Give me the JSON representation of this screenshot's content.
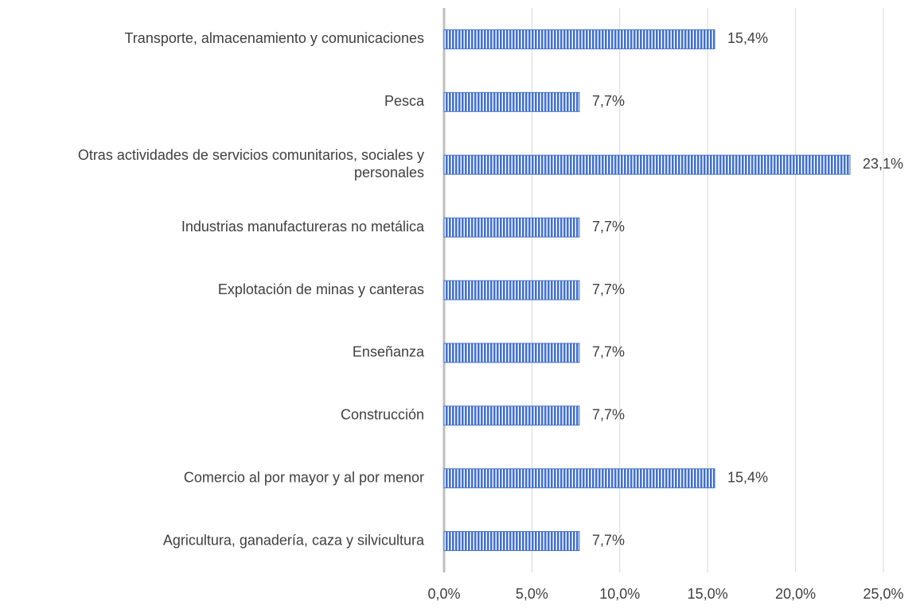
{
  "chart_data": {
    "type": "bar",
    "orientation": "horizontal",
    "categories": [
      "Transporte, almacenamiento y comunicaciones",
      "Pesca",
      "Otras actividades de servicios comunitarios, sociales y\npersonales",
      "Industrias manufactureras no metálica",
      "Explotación de minas y canteras",
      "Enseñanza",
      "Construcción",
      "Comercio al por mayor y al por menor",
      "Agricultura, ganadería, caza y silvicultura"
    ],
    "values": [
      15.4,
      7.7,
      23.1,
      7.7,
      7.7,
      7.7,
      7.7,
      15.4,
      7.7
    ],
    "value_labels": [
      "15,4%",
      "7,7%",
      "23,1%",
      "7,7%",
      "7,7%",
      "7,7%",
      "7,7%",
      "15,4%",
      "7,7%"
    ],
    "color": "#4472c4",
    "xlim": [
      0,
      25
    ],
    "xticks": [
      {
        "value": 0,
        "label": "0,0%"
      },
      {
        "value": 5,
        "label": "5,0%"
      },
      {
        "value": 10,
        "label": "10,0%"
      },
      {
        "value": 15,
        "label": "15,0%"
      },
      {
        "value": 20,
        "label": "20,0%"
      },
      {
        "value": 25,
        "label": "25,0%"
      }
    ],
    "grid": true
  }
}
